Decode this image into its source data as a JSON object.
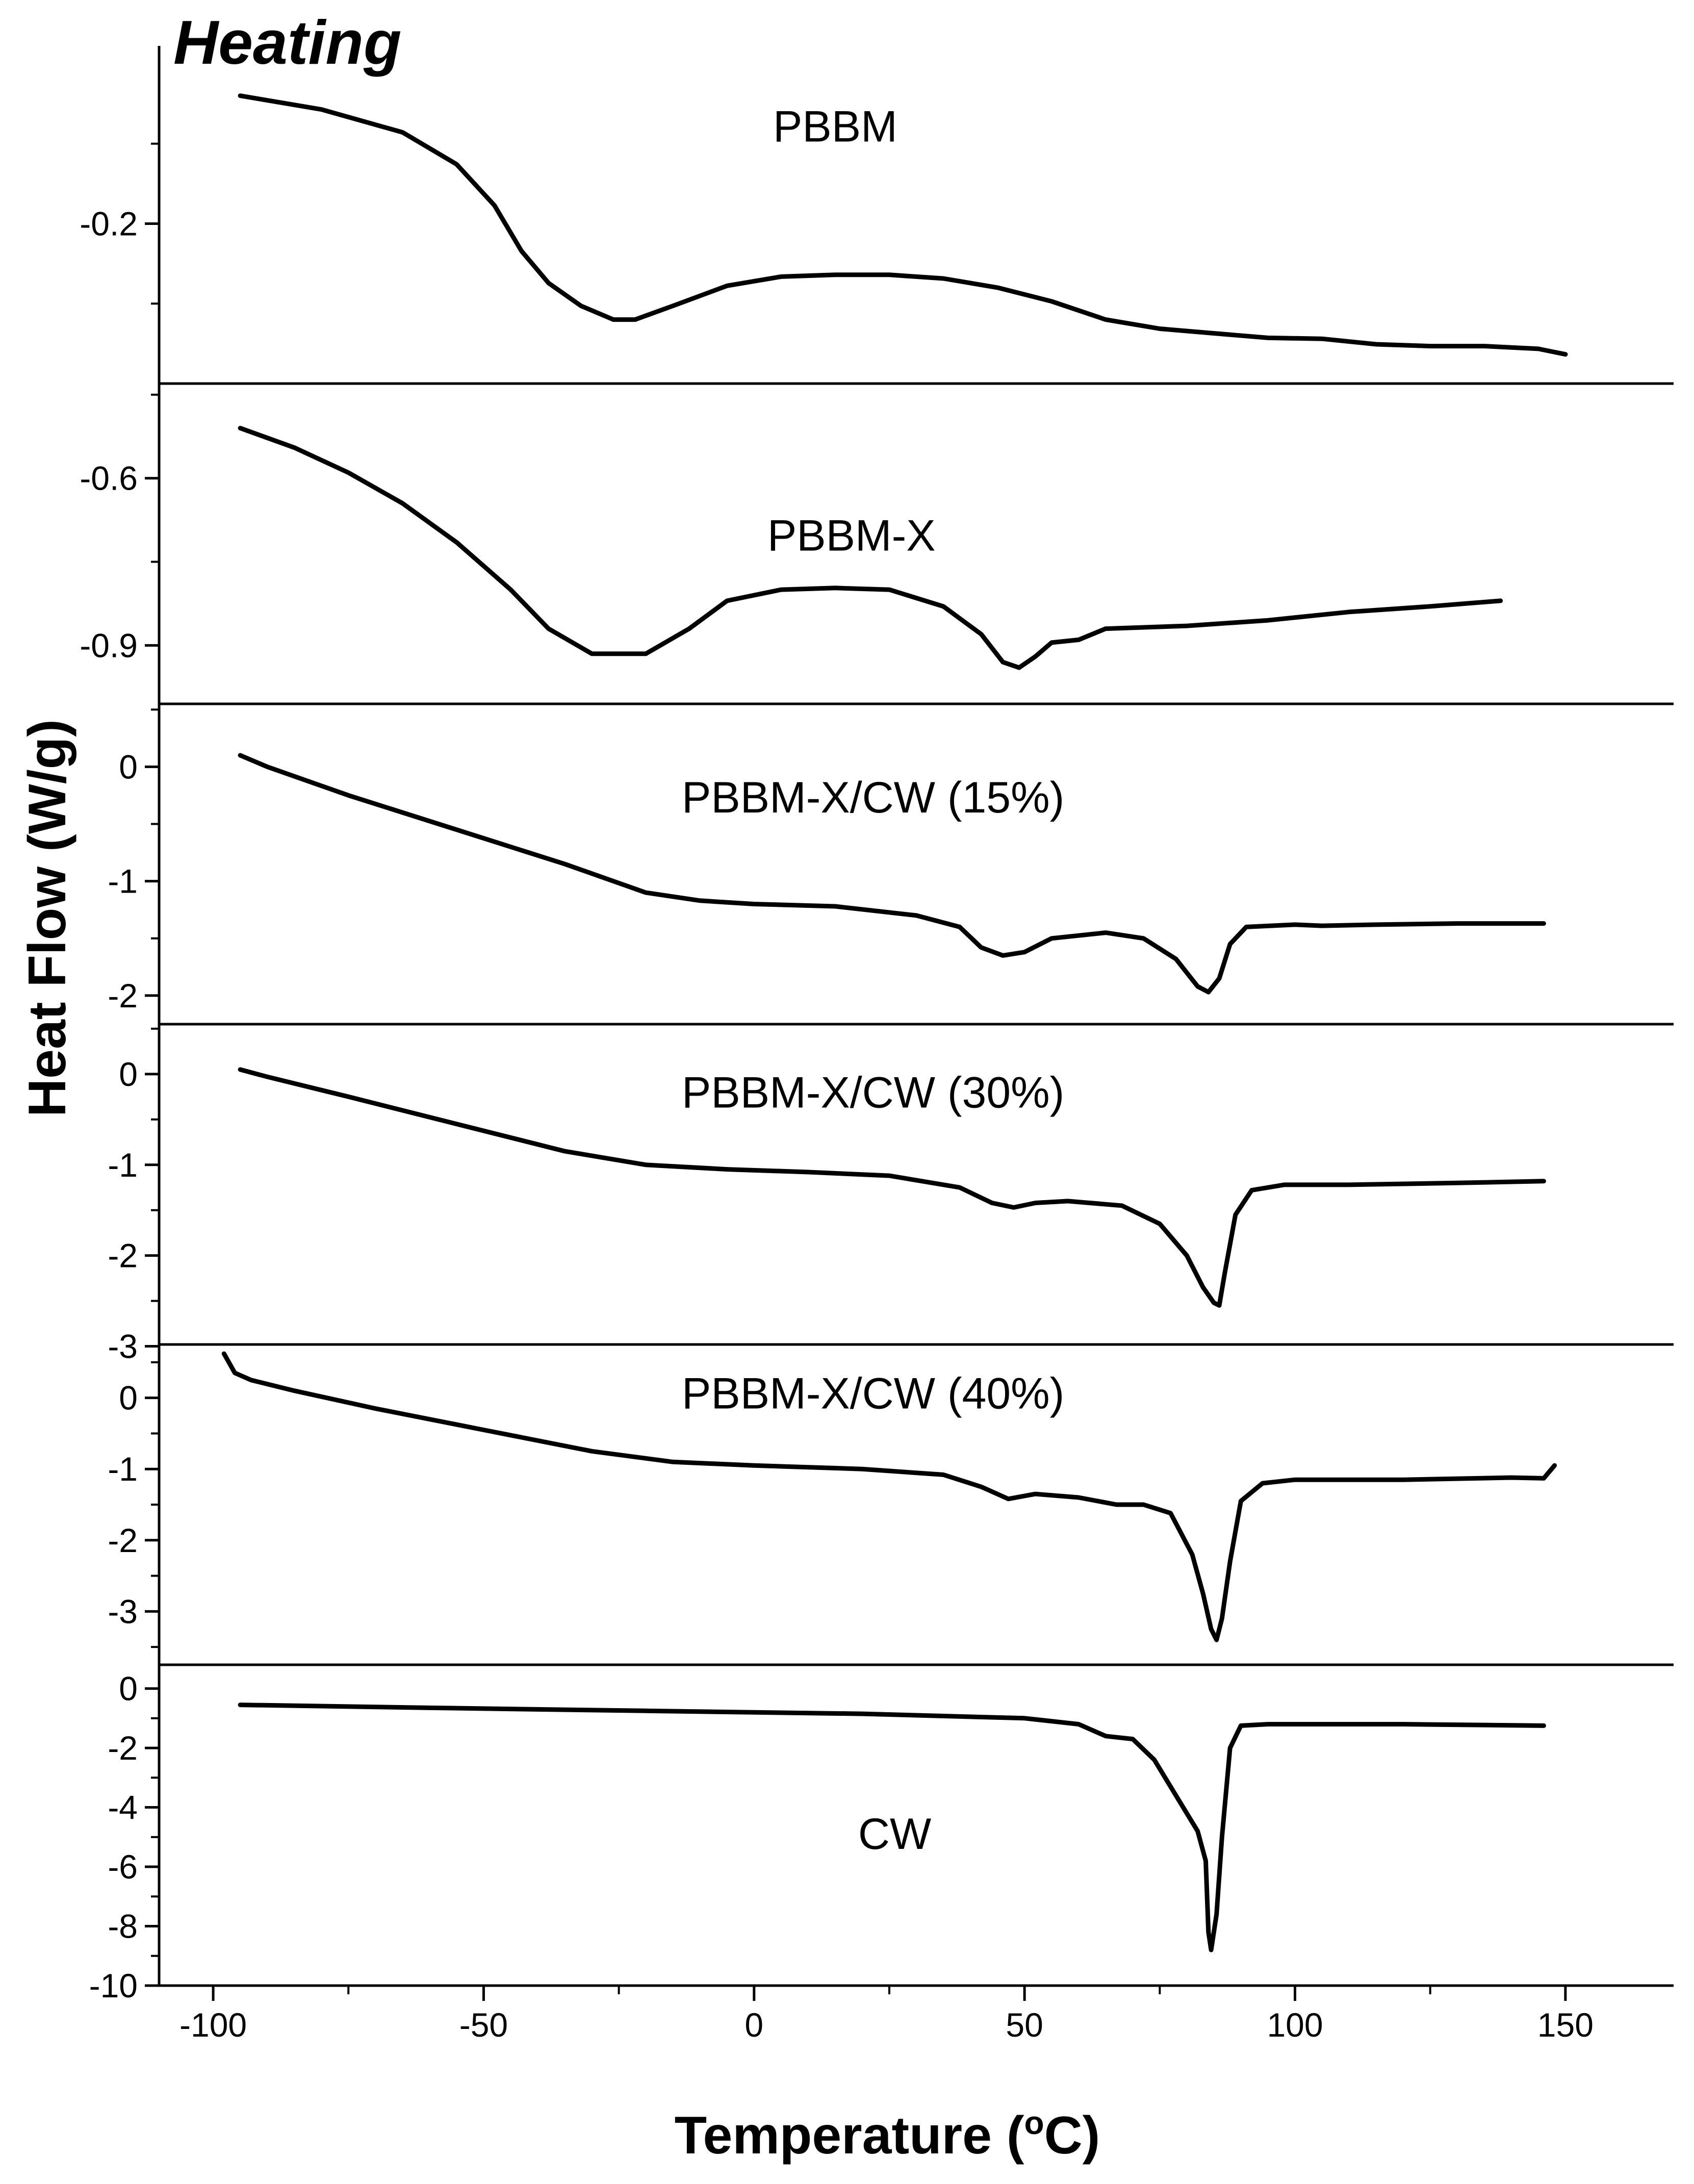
{
  "chart_data": {
    "type": "line",
    "title": "Heating",
    "xlabel": "Temperature (°C)",
    "xlabel_main": "Temperature (",
    "xlabel_degree": "o",
    "xlabel_unit": "C)",
    "ylabel": "Heat Flow (W/g)",
    "xlim": [
      -110,
      170
    ],
    "xticks": [
      -100,
      -50,
      0,
      50,
      100,
      150
    ],
    "xtick_labels": [
      "-100",
      "-50",
      "0",
      "50",
      "100",
      "150"
    ],
    "grid": false,
    "line_color": "#000000",
    "panels": [
      {
        "label": "PBBM",
        "label_x": 15,
        "label_y": -0.11,
        "ylim": [
          -0.375,
          -0.025
        ],
        "yticks": [
          -0.2
        ],
        "ytick_labels": [
          "-0.2"
        ],
        "points": [
          [
            -95,
            -0.06
          ],
          [
            -80,
            -0.075
          ],
          [
            -65,
            -0.1
          ],
          [
            -55,
            -0.135
          ],
          [
            -48,
            -0.18
          ],
          [
            -43,
            -0.23
          ],
          [
            -38,
            -0.265
          ],
          [
            -32,
            -0.29
          ],
          [
            -26,
            -0.305
          ],
          [
            -22,
            -0.305
          ],
          [
            -15,
            -0.29
          ],
          [
            -5,
            -0.268
          ],
          [
            5,
            -0.258
          ],
          [
            15,
            -0.256
          ],
          [
            25,
            -0.256
          ],
          [
            35,
            -0.26
          ],
          [
            45,
            -0.27
          ],
          [
            55,
            -0.285
          ],
          [
            65,
            -0.305
          ],
          [
            75,
            -0.315
          ],
          [
            85,
            -0.32
          ],
          [
            95,
            -0.325
          ],
          [
            105,
            -0.326
          ],
          [
            115,
            -0.332
          ],
          [
            125,
            -0.334
          ],
          [
            135,
            -0.334
          ],
          [
            145,
            -0.337
          ],
          [
            150,
            -0.343
          ]
        ]
      },
      {
        "label": "PBBM-X",
        "label_x": 18,
        "label_y": -0.73,
        "ylim": [
          -1.005,
          -0.43
        ],
        "yticks": [
          -0.6,
          -0.9
        ],
        "ytick_labels": [
          "-0.6",
          "-0.9"
        ],
        "points": [
          [
            -95,
            -0.51
          ],
          [
            -85,
            -0.545
          ],
          [
            -75,
            -0.59
          ],
          [
            -65,
            -0.645
          ],
          [
            -55,
            -0.715
          ],
          [
            -45,
            -0.8
          ],
          [
            -38,
            -0.87
          ],
          [
            -30,
            -0.915
          ],
          [
            -20,
            -0.915
          ],
          [
            -12,
            -0.87
          ],
          [
            -5,
            -0.82
          ],
          [
            5,
            -0.8
          ],
          [
            15,
            -0.797
          ],
          [
            25,
            -0.8
          ],
          [
            35,
            -0.83
          ],
          [
            42,
            -0.88
          ],
          [
            46,
            -0.93
          ],
          [
            49,
            -0.94
          ],
          [
            52,
            -0.92
          ],
          [
            55,
            -0.895
          ],
          [
            60,
            -0.89
          ],
          [
            65,
            -0.87
          ],
          [
            80,
            -0.865
          ],
          [
            95,
            -0.855
          ],
          [
            110,
            -0.84
          ],
          [
            125,
            -0.83
          ],
          [
            138,
            -0.82
          ]
        ]
      },
      {
        "label": "PBBM-X/CW (15%)",
        "label_x": 22,
        "label_y": -0.4,
        "ylim": [
          -2.25,
          0.55
        ],
        "yticks": [
          0,
          -1,
          -2
        ],
        "ytick_labels": [
          "0",
          "-1",
          "-2"
        ],
        "points": [
          [
            -95,
            0.1
          ],
          [
            -90,
            0
          ],
          [
            -75,
            -0.25
          ],
          [
            -55,
            -0.55
          ],
          [
            -35,
            -0.85
          ],
          [
            -20,
            -1.1
          ],
          [
            -10,
            -1.17
          ],
          [
            0,
            -1.2
          ],
          [
            15,
            -1.22
          ],
          [
            30,
            -1.3
          ],
          [
            38,
            -1.4
          ],
          [
            42,
            -1.58
          ],
          [
            46,
            -1.65
          ],
          [
            50,
            -1.62
          ],
          [
            55,
            -1.5
          ],
          [
            65,
            -1.45
          ],
          [
            72,
            -1.5
          ],
          [
            78,
            -1.68
          ],
          [
            82,
            -1.92
          ],
          [
            84,
            -1.97
          ],
          [
            86,
            -1.85
          ],
          [
            88,
            -1.55
          ],
          [
            91,
            -1.4
          ],
          [
            100,
            -1.38
          ],
          [
            105,
            -1.39
          ],
          [
            115,
            -1.38
          ],
          [
            130,
            -1.37
          ],
          [
            146,
            -1.37
          ]
        ]
      },
      {
        "label": "PBBM-X/CW (30%)",
        "label_x": 22,
        "label_y": -0.37,
        "ylim": [
          -2.98,
          0.55
        ],
        "yticks": [
          0,
          -1,
          -2,
          -3
        ],
        "ytick_labels": [
          "0",
          "-1",
          "-2",
          "-3"
        ],
        "points": [
          [
            -95,
            0.05
          ],
          [
            -90,
            -0.03
          ],
          [
            -75,
            -0.25
          ],
          [
            -55,
            -0.55
          ],
          [
            -35,
            -0.85
          ],
          [
            -20,
            -1.0
          ],
          [
            -5,
            -1.05
          ],
          [
            10,
            -1.08
          ],
          [
            25,
            -1.12
          ],
          [
            38,
            -1.25
          ],
          [
            44,
            -1.42
          ],
          [
            48,
            -1.47
          ],
          [
            52,
            -1.42
          ],
          [
            58,
            -1.4
          ],
          [
            68,
            -1.45
          ],
          [
            75,
            -1.65
          ],
          [
            80,
            -2.0
          ],
          [
            83,
            -2.35
          ],
          [
            85,
            -2.52
          ],
          [
            86,
            -2.55
          ],
          [
            87,
            -2.2
          ],
          [
            89,
            -1.55
          ],
          [
            92,
            -1.28
          ],
          [
            98,
            -1.22
          ],
          [
            110,
            -1.22
          ],
          [
            130,
            -1.2
          ],
          [
            146,
            -1.18
          ]
        ]
      },
      {
        "label": "PBBM-X/CW (40%)",
        "label_x": 22,
        "label_y": -0.15,
        "ylim": [
          -3.75,
          0.75
        ],
        "yticks": [
          0,
          -1,
          -2,
          -3
        ],
        "ytick_labels": [
          "0",
          "-1",
          "-2",
          "-3"
        ],
        "points": [
          [
            -98,
            0.62
          ],
          [
            -96,
            0.35
          ],
          [
            -93,
            0.25
          ],
          [
            -85,
            0.1
          ],
          [
            -70,
            -0.15
          ],
          [
            -50,
            -0.45
          ],
          [
            -30,
            -0.75
          ],
          [
            -15,
            -0.9
          ],
          [
            0,
            -0.95
          ],
          [
            20,
            -1.0
          ],
          [
            35,
            -1.08
          ],
          [
            42,
            -1.25
          ],
          [
            47,
            -1.42
          ],
          [
            52,
            -1.35
          ],
          [
            60,
            -1.4
          ],
          [
            67,
            -1.5
          ],
          [
            72,
            -1.5
          ],
          [
            77,
            -1.62
          ],
          [
            81,
            -2.2
          ],
          [
            83,
            -2.75
          ],
          [
            84.5,
            -3.25
          ],
          [
            85.5,
            -3.4
          ],
          [
            86.5,
            -3.1
          ],
          [
            88,
            -2.3
          ],
          [
            90,
            -1.45
          ],
          [
            94,
            -1.2
          ],
          [
            100,
            -1.15
          ],
          [
            120,
            -1.15
          ],
          [
            140,
            -1.12
          ],
          [
            146,
            -1.13
          ],
          [
            148,
            -0.95
          ]
        ]
      },
      {
        "label": "CW",
        "label_x": 26,
        "label_y": -5.4,
        "ylim": [
          -10,
          0.8
        ],
        "yticks": [
          0,
          -2,
          -4,
          -6,
          -8,
          -10
        ],
        "ytick_labels": [
          "0",
          "-2",
          "-4",
          "-6",
          "-8",
          "-10"
        ],
        "points": [
          [
            -95,
            -0.55
          ],
          [
            -60,
            -0.65
          ],
          [
            -20,
            -0.75
          ],
          [
            20,
            -0.85
          ],
          [
            50,
            -1.0
          ],
          [
            60,
            -1.2
          ],
          [
            65,
            -1.6
          ],
          [
            70,
            -1.7
          ],
          [
            74,
            -2.4
          ],
          [
            78,
            -3.6
          ],
          [
            82,
            -4.8
          ],
          [
            83.5,
            -5.8
          ],
          [
            84,
            -8.2
          ],
          [
            84.5,
            -8.8
          ],
          [
            85.5,
            -7.6
          ],
          [
            86.5,
            -5.0
          ],
          [
            88,
            -2.0
          ],
          [
            90,
            -1.25
          ],
          [
            95,
            -1.2
          ],
          [
            120,
            -1.2
          ],
          [
            146,
            -1.25
          ]
        ]
      }
    ]
  }
}
